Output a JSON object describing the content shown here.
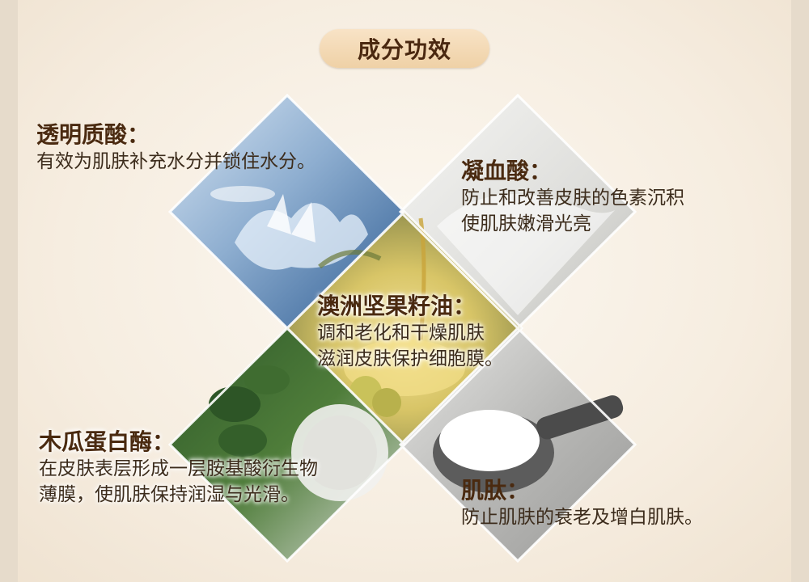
{
  "title": "成分功效",
  "ingredients": [
    {
      "name": "透明质酸：",
      "desc": [
        "有效为肌肤补充水分并锁住水分。"
      ],
      "image_icon": "water-splash-icon"
    },
    {
      "name": "凝血酸：",
      "desc": [
        "防止和改善皮肤的色素沉积",
        "使肌肤嫩滑光亮"
      ],
      "image_icon": "white-powder-icon"
    },
    {
      "name": "澳洲坚果籽油：",
      "desc": [
        "调和老化和干燥肌肤",
        "滋润皮肤保护细胞膜。"
      ],
      "image_icon": "oil-nuts-icon"
    },
    {
      "name": "木瓜蛋白酶：",
      "desc": [
        "在皮肤表层形成一层胺基酸衍生物",
        "薄膜，使肌肤保持润湿与光滑。"
      ],
      "image_icon": "papaya-icon"
    },
    {
      "name": "肌肽：",
      "desc": [
        "防止肌肤的衰老及增白肌肤。"
      ],
      "image_icon": "powder-scoop-icon"
    }
  ],
  "colors": {
    "heading": "#4a2a10",
    "text": "#3c2c1c",
    "pill": "#efd1a6",
    "background": "#f6ede0"
  }
}
